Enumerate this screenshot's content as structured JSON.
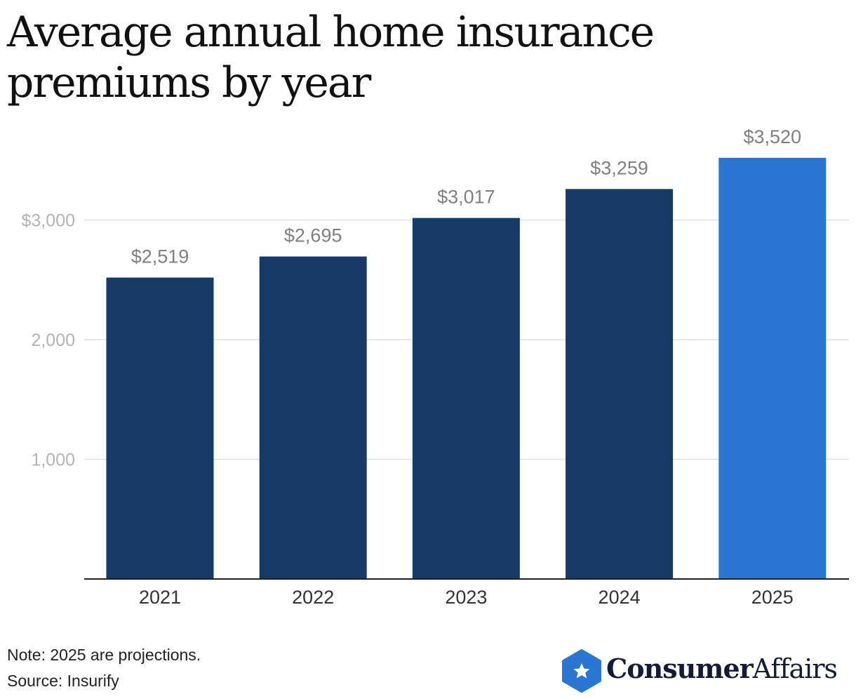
{
  "chart_data": {
    "type": "bar",
    "title": "Average annual home insurance premiums by year",
    "categories": [
      "2021",
      "2022",
      "2023",
      "2024",
      "2025"
    ],
    "values": [
      2519,
      2695,
      3017,
      3259,
      3520
    ],
    "value_labels": [
      "$2,519",
      "$2,695",
      "$3,017",
      "$3,259",
      "$3,520"
    ],
    "y_ticks": [
      1000,
      2000,
      3000
    ],
    "y_tick_labels": [
      "1,000",
      "2,000",
      "$3,000"
    ],
    "ylim": [
      0,
      3600
    ],
    "xlabel": "",
    "ylabel": "",
    "grid": true,
    "colors": {
      "actual": "#173a66",
      "projected": "#2a76d2",
      "grid": "#e3e3e3",
      "axis": "#222222",
      "tick_label": "#b3b3b3",
      "value_label": "#808080",
      "category_label": "#333333"
    },
    "projected_category": "2025"
  },
  "footer": {
    "note": "Note: 2025 are projections.",
    "source": "Source: Insurify"
  },
  "logo": {
    "brand_bold": "Consumer",
    "brand_light": "Affairs",
    "icon": "star-hexagon-icon"
  }
}
